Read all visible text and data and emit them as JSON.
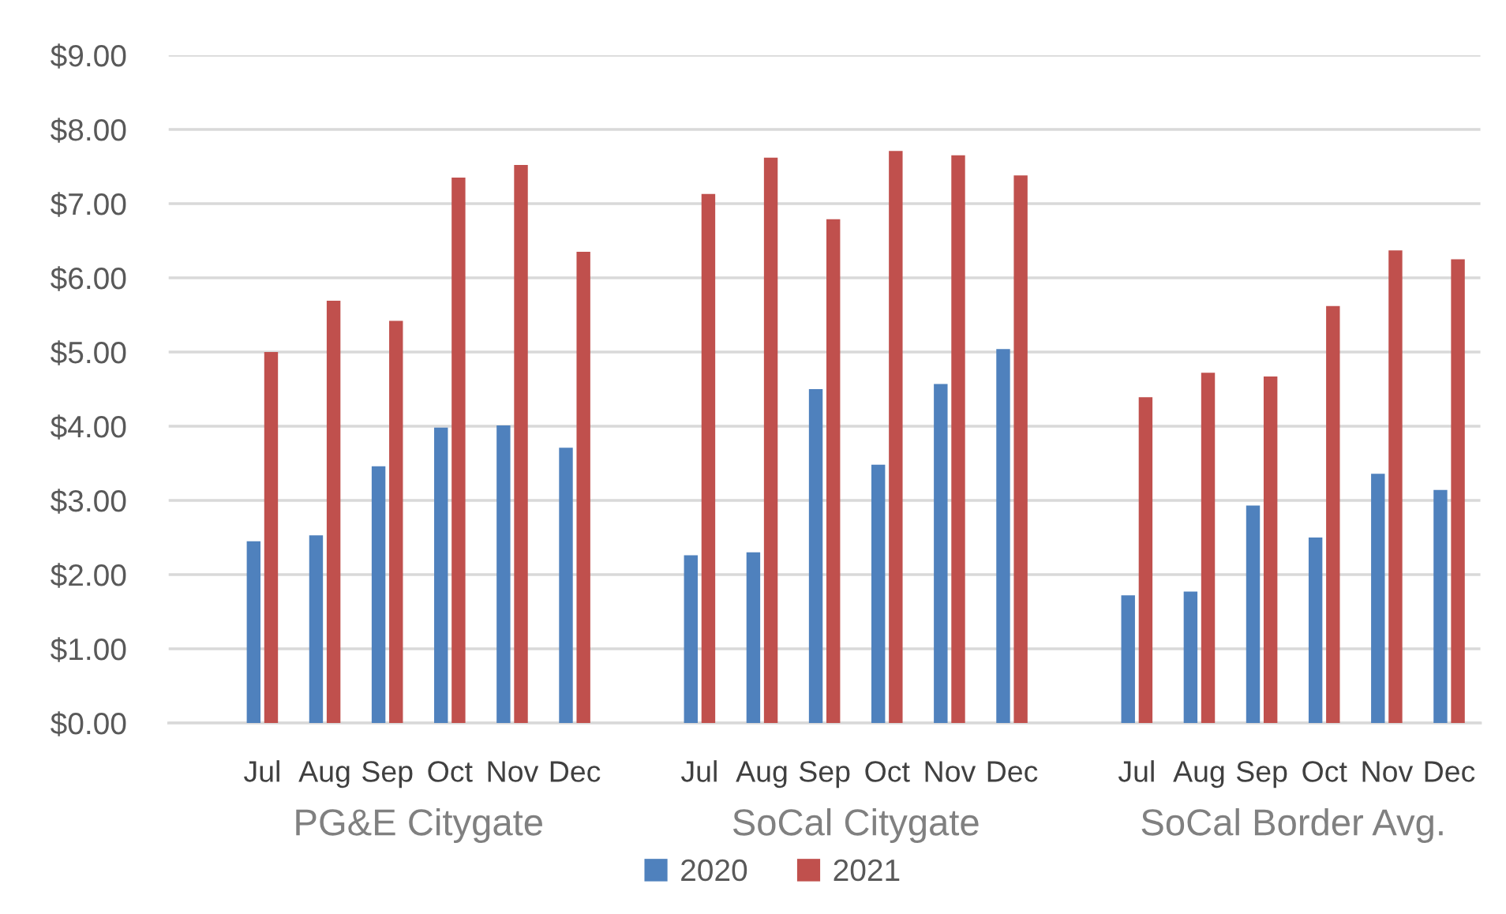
{
  "chart_data": {
    "type": "bar",
    "categories": [
      null,
      "Jul",
      "Aug",
      "Sep",
      "Oct",
      "Nov",
      "Dec",
      null,
      "Jul",
      "Aug",
      "Sep",
      "Oct",
      "Nov",
      "Dec",
      null,
      "Jul",
      "Aug",
      "Sep",
      "Oct",
      "Nov",
      "Dec"
    ],
    "series": [
      {
        "name": "2020",
        "color": "#4f81bd",
        "values": [
          null,
          2.45,
          2.53,
          3.46,
          3.98,
          4.01,
          3.71,
          null,
          2.26,
          2.3,
          4.5,
          3.48,
          4.57,
          5.04,
          null,
          1.72,
          1.77,
          2.93,
          2.5,
          3.36,
          3.14
        ]
      },
      {
        "name": "2021",
        "color": "#c0504d",
        "values": [
          null,
          5.0,
          5.69,
          5.42,
          7.35,
          7.52,
          6.35,
          null,
          7.13,
          7.62,
          6.79,
          7.71,
          7.65,
          7.38,
          null,
          4.39,
          4.72,
          4.67,
          5.62,
          6.37,
          6.25
        ]
      }
    ],
    "ylim": [
      0,
      9
    ],
    "yticks": [
      {
        "value": 0,
        "label": "$0.00"
      },
      {
        "value": 1,
        "label": "$1.00"
      },
      {
        "value": 2,
        "label": "$2.00"
      },
      {
        "value": 3,
        "label": "$3.00"
      },
      {
        "value": 4,
        "label": "$4.00"
      },
      {
        "value": 5,
        "label": "$5.00"
      },
      {
        "value": 6,
        "label": "$6.00"
      },
      {
        "value": 7,
        "label": "$7.00"
      },
      {
        "value": 8,
        "label": "$8.00"
      },
      {
        "value": 9,
        "label": "$9.00"
      }
    ],
    "grid": "y",
    "legend": "bottom",
    "annotations": [
      "PG&E Citygate",
      "SoCal Citygate",
      "SoCal Border Avg."
    ]
  }
}
